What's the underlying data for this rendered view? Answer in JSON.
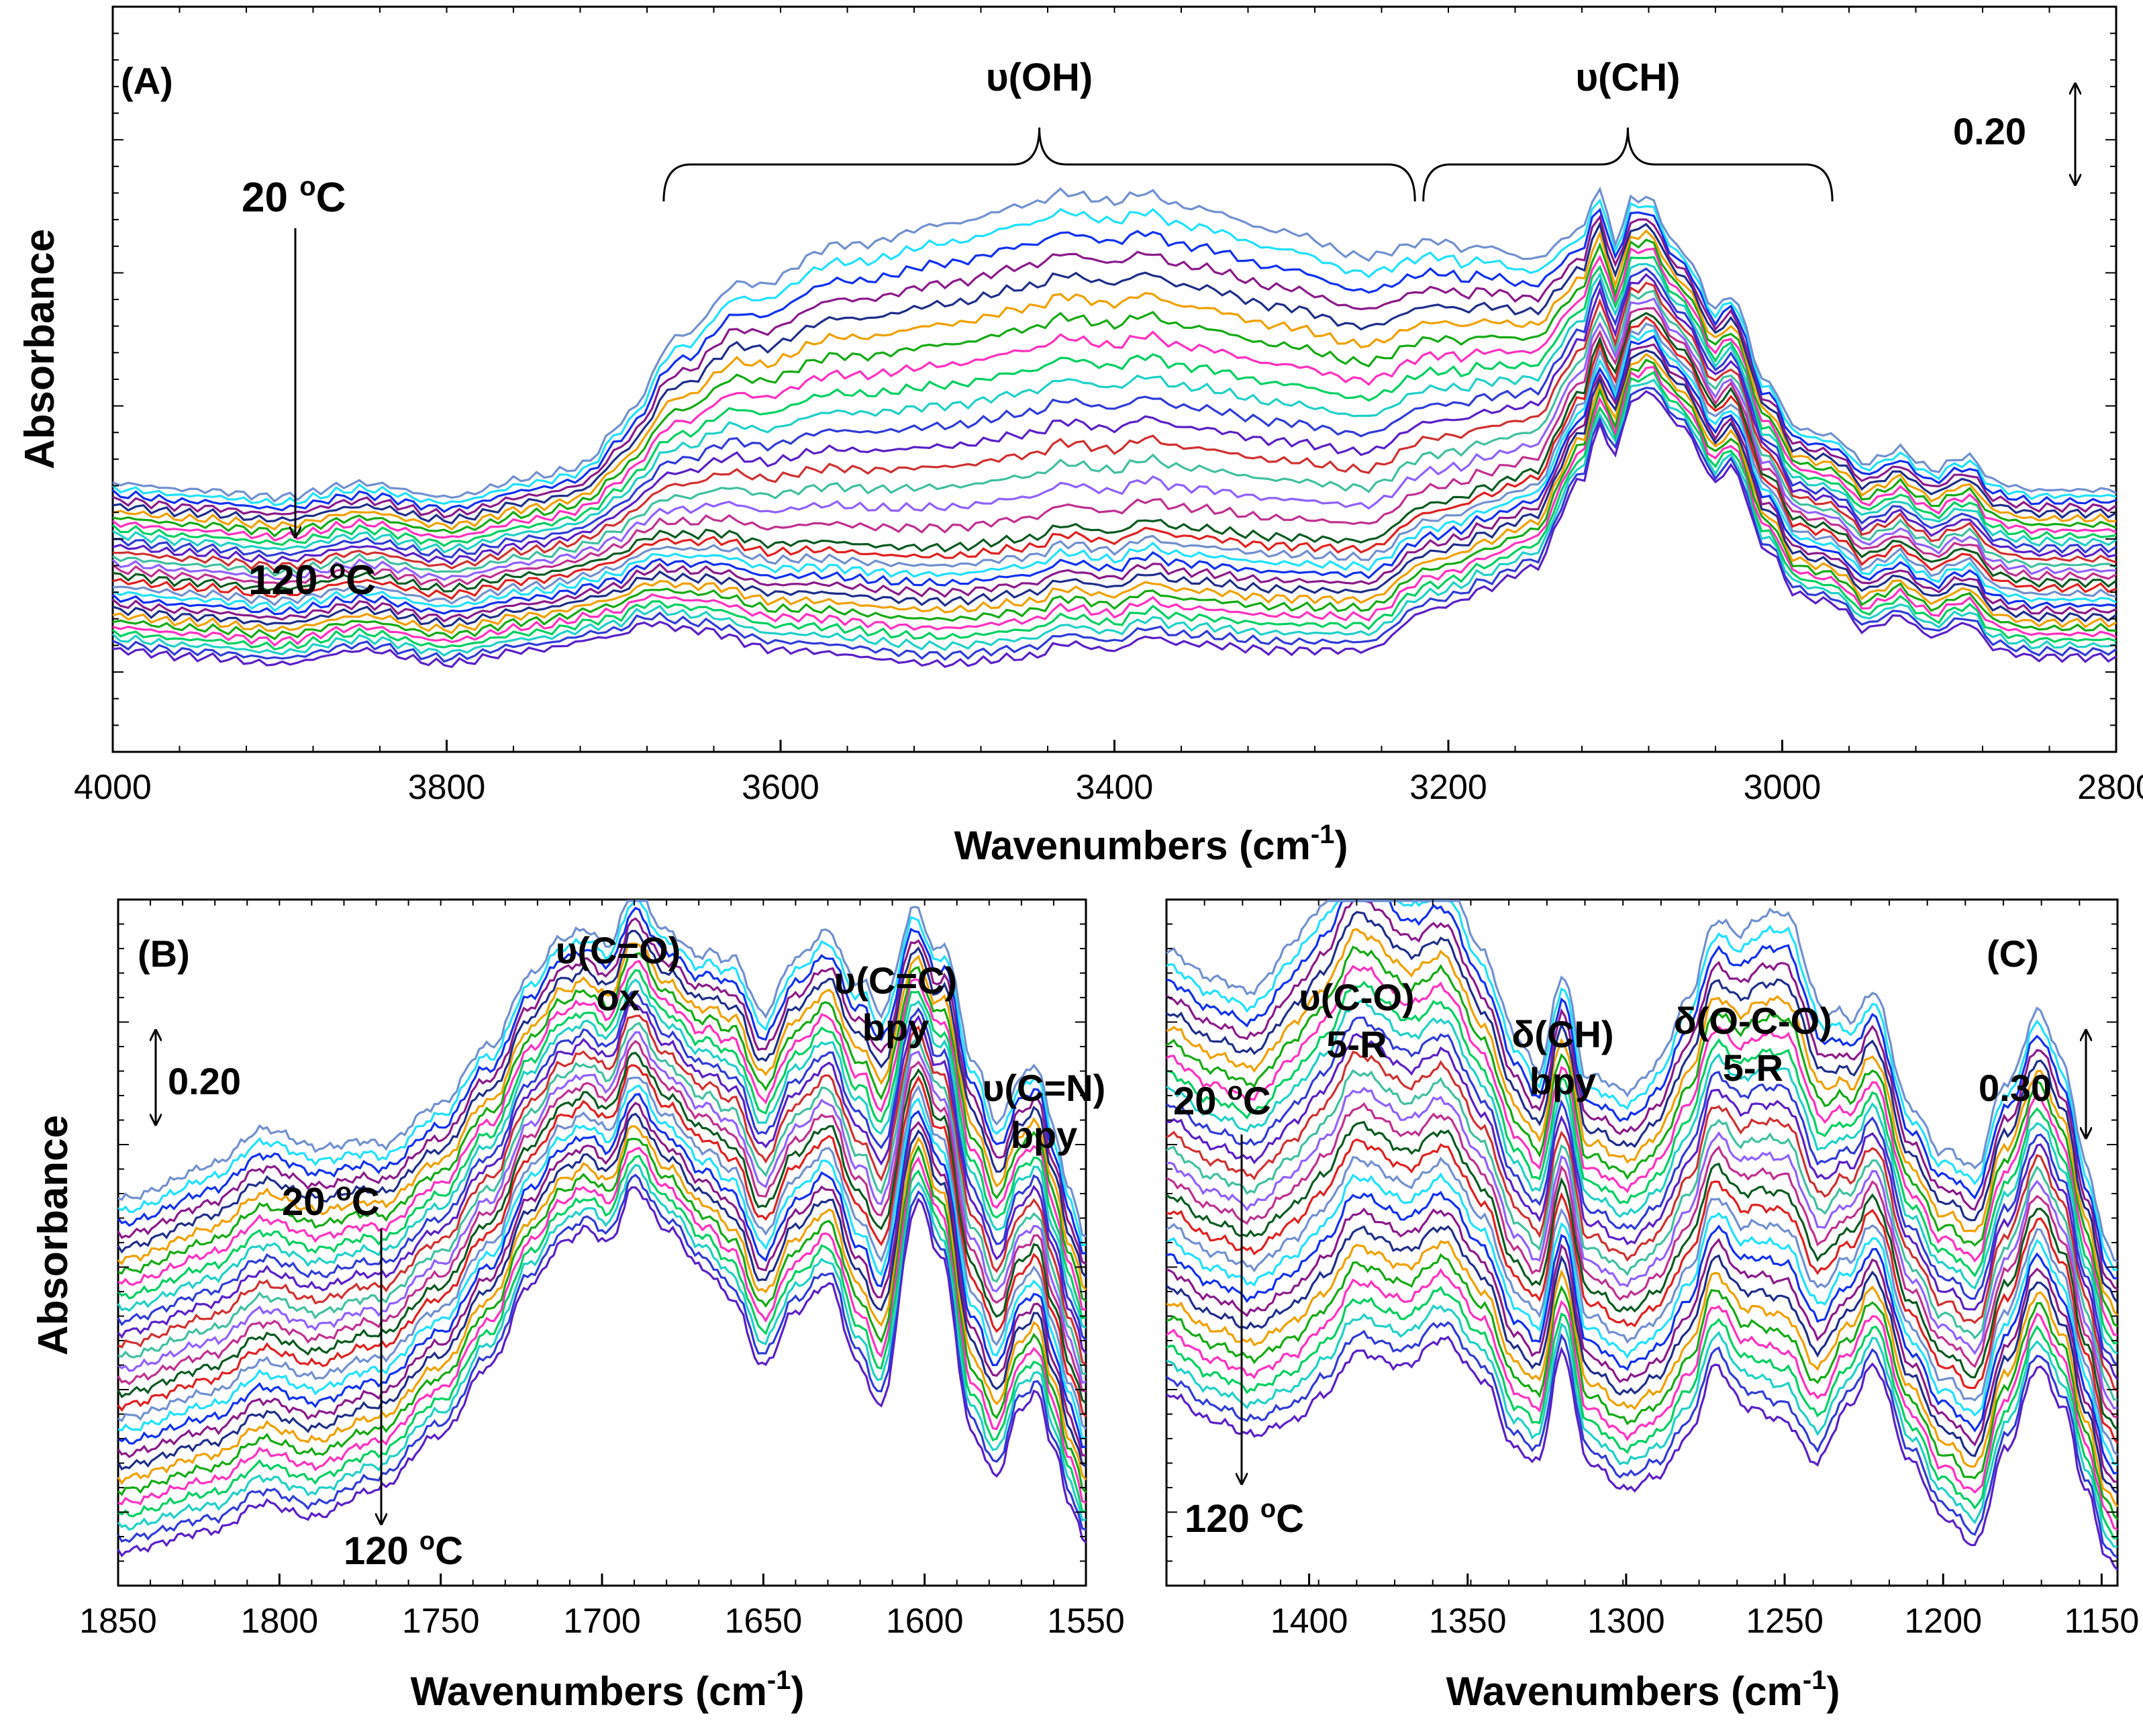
{
  "figure_colors": [
    "#5a1fc8",
    "#2f3bd8",
    "#1fd0c8",
    "#00d060",
    "#ff30c0",
    "#14aa14",
    "#f0a000",
    "#1e2e8a",
    "#8a1a8a",
    "#1030f0",
    "#20e0ff",
    "#7090d0",
    "#e02020",
    "#0a5a20",
    "#c03090",
    "#9060ff",
    "#40c0a0",
    "#d03030"
  ],
  "chart_data": [
    {
      "panel": "A",
      "type": "line",
      "panel_label": "(A)",
      "xlabel": "Wavenumbers (cm",
      "xlabel_sup": "-1",
      "xlabel_close": ")",
      "ylabel": "Absorbance",
      "xlim": [
        4000,
        2800
      ],
      "ylim": [
        0,
        1.1
      ],
      "x_ticks": [
        "4000",
        "3800",
        "3600",
        "3400",
        "3200",
        "3000",
        "2800"
      ],
      "x_tick_values": [
        4000,
        3800,
        3600,
        3400,
        3200,
        3000,
        2800
      ],
      "scale_bar_label": "0.20",
      "scale_bar_value": 0.2,
      "temp_start": "20 ",
      "temp_end": "120 ",
      "temp_unit": "C",
      "temp_degree": "o",
      "bands": [
        {
          "label": "υ(OH)",
          "x_from": 3670,
          "x_to": 3220
        },
        {
          "label": "υ(CH)",
          "x_from": 3215,
          "x_to": 2970
        }
      ],
      "n_series": 30,
      "series_offset_step": 0.0085,
      "base": [
        [
          4000,
          0.15
        ],
        [
          3950,
          0.14
        ],
        [
          3900,
          0.13
        ],
        [
          3850,
          0.15
        ],
        [
          3800,
          0.13
        ],
        [
          3750,
          0.15
        ],
        [
          3700,
          0.17
        ],
        [
          3680,
          0.19
        ],
        [
          3650,
          0.18
        ],
        [
          3600,
          0.15
        ],
        [
          3500,
          0.13
        ],
        [
          3450,
          0.14
        ],
        [
          3430,
          0.16
        ],
        [
          3400,
          0.15
        ],
        [
          3380,
          0.17
        ],
        [
          3360,
          0.16
        ],
        [
          3300,
          0.15
        ],
        [
          3250,
          0.15
        ],
        [
          3210,
          0.21
        ],
        [
          3195,
          0.22
        ],
        [
          3180,
          0.24
        ],
        [
          3150,
          0.27
        ],
        [
          3120,
          0.4
        ],
        [
          3110,
          0.48
        ],
        [
          3100,
          0.44
        ],
        [
          3090,
          0.52
        ],
        [
          3080,
          0.53
        ],
        [
          3060,
          0.48
        ],
        [
          3040,
          0.4
        ],
        [
          3030,
          0.42
        ],
        [
          3010,
          0.3
        ],
        [
          2990,
          0.23
        ],
        [
          2970,
          0.22
        ],
        [
          2950,
          0.18
        ],
        [
          2930,
          0.2
        ],
        [
          2910,
          0.17
        ],
        [
          2890,
          0.19
        ],
        [
          2870,
          0.15
        ],
        [
          2850,
          0.14
        ],
        [
          2800,
          0.14
        ]
      ],
      "oh_band": [
        [
          4000,
          0
        ],
        [
          3800,
          0
        ],
        [
          3720,
          0.02
        ],
        [
          3690,
          0.12
        ],
        [
          3660,
          0.3
        ],
        [
          3620,
          0.46
        ],
        [
          3560,
          0.58
        ],
        [
          3500,
          0.65
        ],
        [
          3450,
          0.68
        ],
        [
          3400,
          0.67
        ],
        [
          3350,
          0.64
        ],
        [
          3300,
          0.6
        ],
        [
          3250,
          0.54
        ],
        [
          3210,
          0.48
        ],
        [
          3180,
          0.42
        ],
        [
          3150,
          0.34
        ],
        [
          3120,
          0.2
        ],
        [
          3090,
          0.08
        ],
        [
          3060,
          0.02
        ],
        [
          3000,
          0
        ],
        [
          2800,
          0
        ]
      ]
    },
    {
      "panel": "B",
      "type": "line",
      "panel_label": "(B)",
      "xlabel": "Wavenumbers (cm",
      "xlabel_sup": "-1",
      "xlabel_close": ")",
      "ylabel": "Absorbance",
      "xlim": [
        1850,
        1550
      ],
      "ylim": [
        0,
        1.0
      ],
      "x_ticks": [
        "1850",
        "1800",
        "1750",
        "1700",
        "1650",
        "1600",
        "1550"
      ],
      "x_tick_values": [
        1850,
        1800,
        1750,
        1700,
        1650,
        1600,
        1550
      ],
      "scale_bar_label": "0.20",
      "scale_bar_value": 0.2,
      "temp_start": "20 ",
      "temp_end": "120 ",
      "temp_unit": "C",
      "temp_degree": "o",
      "annotations": [
        {
          "line1": "υ(C=O)",
          "line2": "ox",
          "x": 1695
        },
        {
          "line1": "υ(C=C)",
          "line2": "bpy",
          "x": 1609
        },
        {
          "line1": "υ(C=N)",
          "line2": "bpy",
          "x": 1563
        }
      ],
      "n_series": 30,
      "series_offset_step": 0.01,
      "base": [
        [
          1850,
          0.05
        ],
        [
          1820,
          0.08
        ],
        [
          1805,
          0.12
        ],
        [
          1790,
          0.1
        ],
        [
          1770,
          0.14
        ],
        [
          1750,
          0.22
        ],
        [
          1735,
          0.32
        ],
        [
          1722,
          0.44
        ],
        [
          1712,
          0.5
        ],
        [
          1705,
          0.52
        ],
        [
          1698,
          0.5
        ],
        [
          1690,
          0.58
        ],
        [
          1680,
          0.52
        ],
        [
          1668,
          0.46
        ],
        [
          1660,
          0.42
        ],
        [
          1650,
          0.32
        ],
        [
          1640,
          0.4
        ],
        [
          1630,
          0.44
        ],
        [
          1620,
          0.32
        ],
        [
          1614,
          0.26
        ],
        [
          1602,
          0.56
        ],
        [
          1595,
          0.48
        ],
        [
          1585,
          0.22
        ],
        [
          1578,
          0.16
        ],
        [
          1570,
          0.26
        ],
        [
          1565,
          0.28
        ],
        [
          1560,
          0.2
        ],
        [
          1555,
          0.12
        ],
        [
          1550,
          0.06
        ]
      ],
      "bump": [
        [
          1850,
          0.14
        ],
        [
          1800,
          0.16
        ],
        [
          1750,
          0.12
        ],
        [
          1720,
          0.1
        ],
        [
          1700,
          0.09
        ],
        [
          1680,
          0.09
        ],
        [
          1650,
          0.14
        ],
        [
          1630,
          0.14
        ],
        [
          1615,
          0.18
        ],
        [
          1600,
          0.08
        ],
        [
          1585,
          0.16
        ],
        [
          1570,
          0.12
        ],
        [
          1550,
          0.1
        ]
      ]
    },
    {
      "panel": "C",
      "type": "line",
      "panel_label": "(C)",
      "xlabel": "Wavenumbers (cm",
      "xlabel_sup": "-1",
      "xlabel_close": ")",
      "ylabel": "",
      "xlim": [
        1445,
        1145
      ],
      "ylim": [
        0,
        1.0
      ],
      "x_ticks": [
        "1400",
        "1350",
        "1300",
        "1250",
        "1200",
        "1150"
      ],
      "x_tick_values": [
        1400,
        1350,
        1300,
        1250,
        1200,
        1150
      ],
      "scale_bar_label": "0.30",
      "scale_bar_value": 0.3,
      "temp_start": "20 ",
      "temp_end": "120 ",
      "temp_unit": "C",
      "temp_degree": "o",
      "annotations": [
        {
          "line1": "υ(C-O)",
          "line2": "5-R",
          "x": 1385
        },
        {
          "line1": "δ(CH)",
          "line2": "bpy",
          "x": 1320
        },
        {
          "line1": "δ(O-C-O)",
          "line2": "5-R",
          "x": 1260
        }
      ],
      "n_series": 30,
      "series_offset_step": 0.009,
      "base": [
        [
          1445,
          0.28
        ],
        [
          1430,
          0.24
        ],
        [
          1418,
          0.22
        ],
        [
          1405,
          0.24
        ],
        [
          1395,
          0.28
        ],
        [
          1385,
          0.34
        ],
        [
          1370,
          0.32
        ],
        [
          1358,
          0.36
        ],
        [
          1345,
          0.3
        ],
        [
          1335,
          0.2
        ],
        [
          1328,
          0.18
        ],
        [
          1320,
          0.34
        ],
        [
          1312,
          0.18
        ],
        [
          1300,
          0.14
        ],
        [
          1290,
          0.16
        ],
        [
          1280,
          0.22
        ],
        [
          1272,
          0.32
        ],
        [
          1262,
          0.26
        ],
        [
          1250,
          0.24
        ],
        [
          1240,
          0.18
        ],
        [
          1230,
          0.26
        ],
        [
          1222,
          0.32
        ],
        [
          1210,
          0.18
        ],
        [
          1200,
          0.1
        ],
        [
          1190,
          0.06
        ],
        [
          1180,
          0.2
        ],
        [
          1170,
          0.32
        ],
        [
          1162,
          0.26
        ],
        [
          1155,
          0.14
        ],
        [
          1148,
          0.04
        ],
        [
          1145,
          0.02
        ]
      ],
      "bump": [
        [
          1445,
          0.24
        ],
        [
          1420,
          0.24
        ],
        [
          1400,
          0.28
        ],
        [
          1385,
          0.3
        ],
        [
          1360,
          0.26
        ],
        [
          1340,
          0.22
        ],
        [
          1320,
          0.18
        ],
        [
          1300,
          0.2
        ],
        [
          1275,
          0.24
        ],
        [
          1250,
          0.3
        ],
        [
          1225,
          0.18
        ],
        [
          1210,
          0.16
        ],
        [
          1190,
          0.18
        ],
        [
          1170,
          0.16
        ],
        [
          1145,
          0.12
        ]
      ]
    }
  ]
}
